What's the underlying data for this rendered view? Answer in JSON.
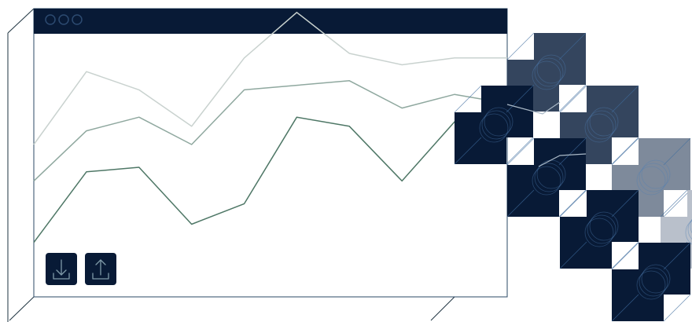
{
  "colors": {
    "navy": "#081a36",
    "slate": "#34455e",
    "steel": "#7e8a9b",
    "mist": "#b9c0cb",
    "line_light": "#c9d2cf",
    "line_mid": "#8fa89f",
    "line_dark": "#4e7766",
    "edge": "#1e3340",
    "outline": "#2b4a66"
  },
  "window": {
    "titlebar_dots": [
      "close-dot",
      "minimize-dot",
      "maximize-dot"
    ]
  },
  "chart_data": {
    "type": "line",
    "title": "",
    "xlabel": "",
    "ylabel": "",
    "grid": false,
    "legend": "none",
    "axes_visible": false,
    "series": [
      {
        "values": [
          40,
          72,
          64,
          48,
          78,
          98,
          80,
          75,
          78,
          78
        ]
      },
      {
        "values": [
          24,
          46,
          52,
          40,
          64,
          66,
          68,
          56,
          62,
          58
        ]
      },
      {
        "values": [
          -3,
          28,
          30,
          5,
          14,
          52,
          48,
          24,
          50,
          44
        ]
      }
    ]
  },
  "actions": {
    "download": {
      "icon": "download-icon"
    },
    "upload": {
      "icon": "upload-icon"
    }
  },
  "cube_shades": [
    "slate",
    "navy",
    "slate",
    "navy",
    "steel",
    "navy",
    "mist",
    "navy"
  ]
}
